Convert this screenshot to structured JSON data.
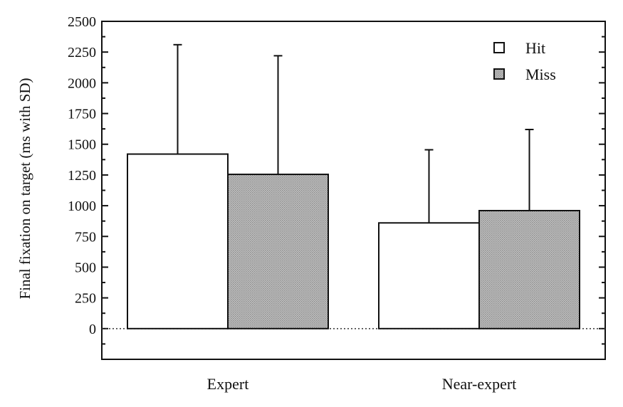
{
  "chart_data": {
    "type": "bar",
    "title": "",
    "xlabel": "",
    "ylabel": "Final fixation on target (ms with SD)",
    "categories": [
      "Expert",
      "Near-expert"
    ],
    "series": [
      {
        "name": "Hit",
        "values": [
          1420,
          860
        ],
        "sd": [
          890,
          595
        ],
        "color": "#ffffff"
      },
      {
        "name": "Miss",
        "values": [
          1255,
          960
        ],
        "sd": [
          965,
          660
        ],
        "color": "#b8b8b8"
      }
    ],
    "ylim": [
      -250,
      2500
    ],
    "yticks": [
      0,
      250,
      500,
      750,
      1000,
      1250,
      1500,
      1750,
      2000,
      2250,
      2500
    ],
    "ytick_labels": [
      "0",
      "250",
      "500",
      "750",
      "1000",
      "1250",
      "1500",
      "1750",
      "2000",
      "2250",
      "2500"
    ],
    "grid": false,
    "legend": "top-right",
    "zero_line": "dotted"
  }
}
